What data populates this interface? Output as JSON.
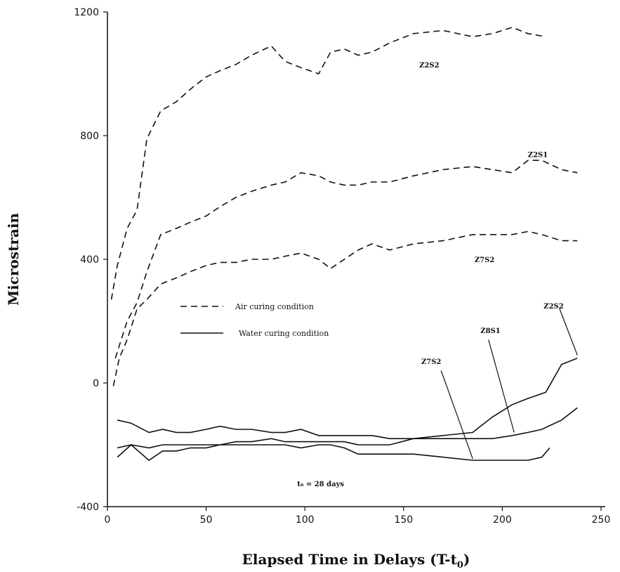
{
  "chart_data": {
    "type": "line",
    "xlabel": "Elapsed Time in Delays (T-t",
    "xlabel_sub": "0",
    "xlabel_end": ")",
    "ylabel": "Microstrain",
    "xlim": [
      0,
      250
    ],
    "ylim": [
      -400,
      1200
    ],
    "xticks": [
      0,
      50,
      100,
      150,
      200,
      250
    ],
    "yticks": [
      -400,
      0,
      400,
      800,
      1200
    ],
    "xtick_labels": [
      "0",
      "50",
      "100",
      "150",
      "200",
      "250"
    ],
    "ytick_labels": [
      "-400",
      "0",
      "400",
      "800",
      "1200"
    ],
    "grid": false,
    "series": [
      {
        "style": "dashed",
        "points": [
          [
            2,
            270
          ],
          [
            5,
            380
          ],
          [
            10,
            500
          ],
          [
            15,
            560
          ],
          [
            20,
            790
          ],
          [
            27,
            880
          ],
          [
            35,
            910
          ],
          [
            42,
            950
          ],
          [
            50,
            990
          ],
          [
            57,
            1010
          ],
          [
            65,
            1030
          ],
          [
            73,
            1060
          ],
          [
            83,
            1090
          ],
          [
            90,
            1040
          ],
          [
            98,
            1020
          ],
          [
            107,
            1000
          ],
          [
            113,
            1070
          ],
          [
            120,
            1080
          ],
          [
            127,
            1060
          ],
          [
            134,
            1070
          ],
          [
            143,
            1100
          ],
          [
            155,
            1130
          ],
          [
            170,
            1140
          ],
          [
            185,
            1120
          ],
          [
            195,
            1130
          ],
          [
            205,
            1150
          ],
          [
            213,
            1130
          ],
          [
            222,
            1120
          ]
        ]
      },
      {
        "style": "dashed",
        "points": [
          [
            4,
            80
          ],
          [
            10,
            200
          ],
          [
            15,
            260
          ],
          [
            20,
            360
          ],
          [
            27,
            480
          ],
          [
            35,
            500
          ],
          [
            42,
            520
          ],
          [
            50,
            540
          ],
          [
            57,
            570
          ],
          [
            65,
            600
          ],
          [
            73,
            620
          ],
          [
            83,
            640
          ],
          [
            90,
            650
          ],
          [
            98,
            680
          ],
          [
            107,
            670
          ],
          [
            113,
            650
          ],
          [
            120,
            640
          ],
          [
            127,
            640
          ],
          [
            134,
            650
          ],
          [
            143,
            650
          ],
          [
            155,
            670
          ],
          [
            170,
            690
          ],
          [
            185,
            700
          ],
          [
            195,
            690
          ],
          [
            205,
            680
          ],
          [
            213,
            720
          ],
          [
            220,
            720
          ],
          [
            230,
            690
          ],
          [
            238,
            680
          ]
        ]
      },
      {
        "style": "dashed",
        "points": [
          [
            3,
            -10
          ],
          [
            6,
            80
          ],
          [
            10,
            140
          ],
          [
            15,
            240
          ],
          [
            20,
            270
          ],
          [
            27,
            320
          ],
          [
            35,
            340
          ],
          [
            42,
            360
          ],
          [
            50,
            380
          ],
          [
            57,
            390
          ],
          [
            65,
            390
          ],
          [
            73,
            400
          ],
          [
            83,
            400
          ],
          [
            90,
            410
          ],
          [
            98,
            420
          ],
          [
            107,
            400
          ],
          [
            113,
            370
          ],
          [
            120,
            400
          ],
          [
            127,
            430
          ],
          [
            134,
            450
          ],
          [
            143,
            430
          ],
          [
            155,
            450
          ],
          [
            170,
            460
          ],
          [
            185,
            480
          ],
          [
            195,
            480
          ],
          [
            205,
            480
          ],
          [
            213,
            490
          ],
          [
            220,
            480
          ],
          [
            230,
            460
          ],
          [
            238,
            460
          ]
        ]
      },
      {
        "style": "solid",
        "points": [
          [
            5,
            -120
          ],
          [
            12,
            -130
          ],
          [
            21,
            -160
          ],
          [
            28,
            -150
          ],
          [
            35,
            -160
          ],
          [
            42,
            -160
          ],
          [
            50,
            -150
          ],
          [
            57,
            -140
          ],
          [
            65,
            -150
          ],
          [
            73,
            -150
          ],
          [
            83,
            -160
          ],
          [
            90,
            -160
          ],
          [
            98,
            -150
          ],
          [
            107,
            -170
          ],
          [
            113,
            -170
          ],
          [
            120,
            -170
          ],
          [
            127,
            -170
          ],
          [
            134,
            -170
          ],
          [
            143,
            -180
          ],
          [
            155,
            -180
          ],
          [
            170,
            -180
          ],
          [
            185,
            -180
          ],
          [
            195,
            -180
          ],
          [
            205,
            -170
          ],
          [
            213,
            -160
          ],
          [
            220,
            -150
          ],
          [
            230,
            -120
          ],
          [
            238,
            -80
          ]
        ]
      },
      {
        "style": "solid",
        "points": [
          [
            5,
            -210
          ],
          [
            12,
            -200
          ],
          [
            21,
            -210
          ],
          [
            28,
            -200
          ],
          [
            35,
            -200
          ],
          [
            42,
            -200
          ],
          [
            50,
            -200
          ],
          [
            57,
            -200
          ],
          [
            65,
            -190
          ],
          [
            73,
            -190
          ],
          [
            83,
            -180
          ],
          [
            90,
            -190
          ],
          [
            98,
            -190
          ],
          [
            107,
            -190
          ],
          [
            113,
            -190
          ],
          [
            120,
            -190
          ],
          [
            127,
            -200
          ],
          [
            134,
            -200
          ],
          [
            143,
            -200
          ],
          [
            155,
            -180
          ],
          [
            170,
            -170
          ],
          [
            185,
            -160
          ],
          [
            195,
            -110
          ],
          [
            205,
            -70
          ],
          [
            213,
            -50
          ],
          [
            222,
            -30
          ],
          [
            230,
            60
          ],
          [
            238,
            80
          ]
        ]
      },
      {
        "style": "solid",
        "points": [
          [
            5,
            -240
          ],
          [
            12,
            -200
          ],
          [
            21,
            -250
          ],
          [
            28,
            -220
          ],
          [
            35,
            -220
          ],
          [
            42,
            -210
          ],
          [
            50,
            -210
          ],
          [
            57,
            -200
          ],
          [
            65,
            -200
          ],
          [
            73,
            -200
          ],
          [
            83,
            -200
          ],
          [
            90,
            -200
          ],
          [
            98,
            -210
          ],
          [
            107,
            -200
          ],
          [
            113,
            -200
          ],
          [
            120,
            -210
          ],
          [
            127,
            -230
          ],
          [
            134,
            -230
          ],
          [
            143,
            -230
          ],
          [
            155,
            -230
          ],
          [
            170,
            -240
          ],
          [
            185,
            -250
          ],
          [
            195,
            -250
          ],
          [
            205,
            -250
          ],
          [
            213,
            -250
          ],
          [
            220,
            -240
          ],
          [
            224,
            -210
          ]
        ]
      }
    ],
    "annotations": [
      {
        "text": "Z2S2",
        "x": 163,
        "y": 1030
      },
      {
        "text": "Z2S1",
        "x": 218,
        "y": 740
      },
      {
        "text": "Z7S2",
        "x": 191,
        "y": 400
      },
      {
        "text": "Z2S2",
        "x": 226,
        "y": 250
      },
      {
        "text": "Z8S1",
        "x": 194,
        "y": 170
      },
      {
        "text": "Z7S2",
        "x": 164,
        "y": 70
      },
      {
        "text": "t₀ = 28 days",
        "x": 108,
        "y": -325
      }
    ],
    "leaders": [
      {
        "from": [
          229,
          240
        ],
        "to": [
          238,
          90
        ]
      },
      {
        "from": [
          193,
          140
        ],
        "to": [
          206,
          -160
        ]
      },
      {
        "from": [
          169,
          40
        ],
        "to": [
          185,
          -245
        ]
      }
    ],
    "legend": {
      "placement": "center-left",
      "entries": [
        {
          "style": "dashed",
          "label": "Air curing condition"
        },
        {
          "style": "solid",
          "label": "Water curing condition"
        }
      ]
    }
  }
}
